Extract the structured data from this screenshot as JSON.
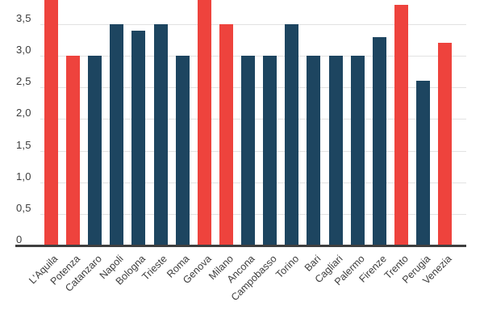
{
  "chart_data": {
    "type": "bar",
    "title": "",
    "xlabel": "",
    "ylabel": "",
    "legend": "none",
    "grid": true,
    "decimal_separator": ",",
    "categories": [
      "L'Aquila",
      "Potenza",
      "Catanzaro",
      "Napoli",
      "Bologna",
      "Trieste",
      "Roma",
      "Genova",
      "Milano",
      "Ancona",
      "Campobasso",
      "Torino",
      "Bari",
      "Cagliari",
      "Palermo",
      "Firenze",
      "Trento",
      "Perugia",
      "Venezia"
    ],
    "values": [
      3.9,
      3.0,
      3.0,
      3.5,
      3.4,
      3.5,
      3.0,
      3.9,
      3.5,
      3.0,
      3.0,
      3.5,
      3.0,
      3.0,
      3.0,
      3.3,
      3.8,
      2.6,
      3.2
    ],
    "highlighted": [
      true,
      true,
      false,
      false,
      false,
      false,
      false,
      true,
      true,
      false,
      false,
      false,
      false,
      false,
      false,
      false,
      true,
      false,
      true
    ],
    "bars_clipped_at_top": [
      "L'Aquila",
      "Genova"
    ],
    "yticks": {
      "values": [
        0,
        0.5,
        1.0,
        1.5,
        2.0,
        2.5,
        3.0,
        3.5
      ],
      "labels": [
        "0",
        "0,5",
        "1,0",
        "1,5",
        "2,0",
        "2,5",
        "3,0",
        "3,5"
      ]
    },
    "ylim": [
      0,
      3.93
    ],
    "colors": {
      "bar_default": "#1d4560",
      "bar_highlight": "#ee433d",
      "gridline": "#e2e2e2",
      "axis": "#3f3f3f",
      "tick_label": "#3d3d3d"
    }
  }
}
